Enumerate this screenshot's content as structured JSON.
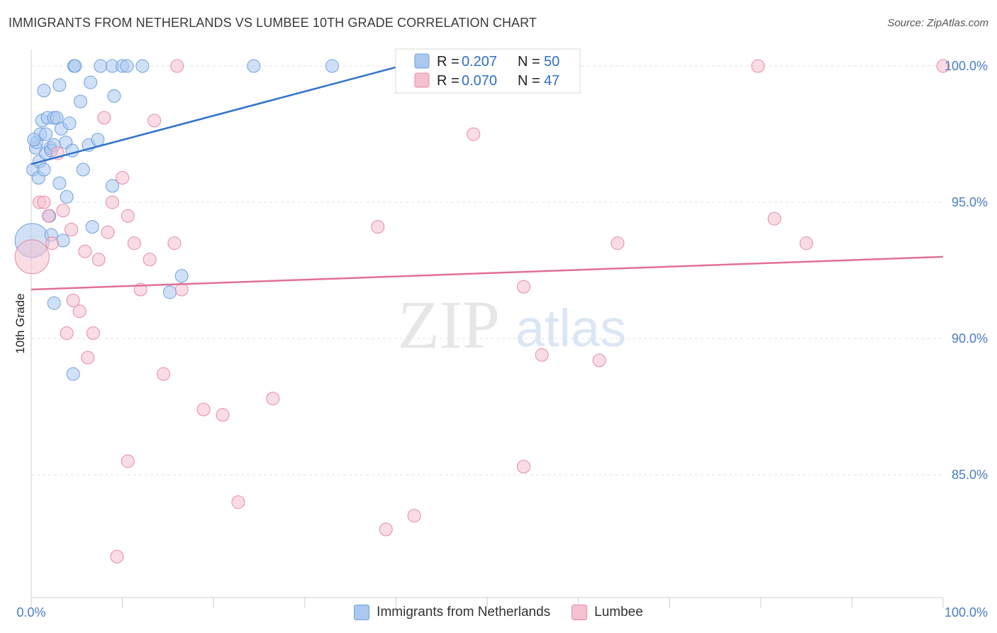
{
  "header": {
    "title": "IMMIGRANTS FROM NETHERLANDS VS LUMBEE 10TH GRADE CORRELATION CHART",
    "source": "Source: ZipAtlas.com"
  },
  "watermark": {
    "zip": "ZIP",
    "atlas": "atlas"
  },
  "colors": {
    "blue_fill": "#aac8f0",
    "blue_stroke": "#6f9fdc",
    "blue_line": "#2f72c9",
    "pink_fill": "#f5c0d0",
    "pink_stroke": "#e68aa6",
    "pink_line": "#e07098",
    "tick": "#4a7cc7",
    "grid": "#e3e3e3"
  },
  "legend": {
    "rows": [
      {
        "r_label": "R =",
        "r_value": "0.207",
        "n_label": "N =",
        "n_value": "50"
      },
      {
        "r_label": "R =",
        "r_value": "0.070",
        "n_label": "N =",
        "n_value": "47"
      }
    ]
  },
  "chart_data": {
    "type": "scatter",
    "title": "IMMIGRANTS FROM NETHERLANDS VS LUMBEE 10TH GRADE CORRELATION CHART",
    "xlabel": "",
    "ylabel": "10th Grade",
    "xlim": [
      0,
      100
    ],
    "ylim": [
      80.5,
      100.6
    ],
    "x_tick_labels": [
      "0.0%",
      "100.0%"
    ],
    "y_ticks": [
      85,
      90,
      95,
      100
    ],
    "y_tick_labels": [
      "85.0%",
      "90.0%",
      "95.0%",
      "100.0%"
    ],
    "legend_position": "top-center",
    "series": [
      {
        "name": "Immigrants from Netherlands",
        "color": "blue",
        "R": 0.207,
        "N": 50,
        "trend": {
          "x": [
            0,
            40.5
          ],
          "y": [
            96.4,
            100.0
          ]
        },
        "points": [
          {
            "x": 0.1,
            "y": 93.6,
            "big": true
          },
          {
            "x": 0.2,
            "y": 96.2
          },
          {
            "x": 0.5,
            "y": 97.0
          },
          {
            "x": 0.6,
            "y": 97.2
          },
          {
            "x": 0.8,
            "y": 95.9
          },
          {
            "x": 0.9,
            "y": 96.5
          },
          {
            "x": 1.0,
            "y": 97.5
          },
          {
            "x": 1.2,
            "y": 98.0
          },
          {
            "x": 1.4,
            "y": 99.1
          },
          {
            "x": 1.4,
            "y": 96.2
          },
          {
            "x": 1.6,
            "y": 96.8
          },
          {
            "x": 1.6,
            "y": 97.5
          },
          {
            "x": 1.8,
            "y": 98.1
          },
          {
            "x": 2.0,
            "y": 94.5
          },
          {
            "x": 2.1,
            "y": 97.0
          },
          {
            "x": 2.2,
            "y": 96.9
          },
          {
            "x": 2.2,
            "y": 93.8
          },
          {
            "x": 2.5,
            "y": 91.3
          },
          {
            "x": 2.5,
            "y": 98.1
          },
          {
            "x": 2.5,
            "y": 97.1
          },
          {
            "x": 2.8,
            "y": 98.1
          },
          {
            "x": 3.1,
            "y": 99.3
          },
          {
            "x": 3.1,
            "y": 95.7
          },
          {
            "x": 3.3,
            "y": 97.7
          },
          {
            "x": 3.5,
            "y": 93.6
          },
          {
            "x": 3.8,
            "y": 97.2
          },
          {
            "x": 3.9,
            "y": 95.2
          },
          {
            "x": 4.2,
            "y": 97.9
          },
          {
            "x": 4.5,
            "y": 96.9
          },
          {
            "x": 4.6,
            "y": 88.7
          },
          {
            "x": 4.7,
            "y": 100.0
          },
          {
            "x": 4.8,
            "y": 100.0
          },
          {
            "x": 5.4,
            "y": 98.7
          },
          {
            "x": 5.7,
            "y": 96.2
          },
          {
            "x": 6.3,
            "y": 97.1
          },
          {
            "x": 6.5,
            "y": 99.4
          },
          {
            "x": 6.7,
            "y": 94.1
          },
          {
            "x": 7.3,
            "y": 97.3
          },
          {
            "x": 7.6,
            "y": 100.0
          },
          {
            "x": 8.9,
            "y": 100.0
          },
          {
            "x": 8.9,
            "y": 95.6
          },
          {
            "x": 9.1,
            "y": 98.9
          },
          {
            "x": 10.0,
            "y": 100.0
          },
          {
            "x": 10.5,
            "y": 100.0
          },
          {
            "x": 12.2,
            "y": 100.0
          },
          {
            "x": 15.2,
            "y": 91.7
          },
          {
            "x": 16.5,
            "y": 92.3
          },
          {
            "x": 24.4,
            "y": 100.0
          },
          {
            "x": 33.0,
            "y": 100.0
          },
          {
            "x": 0.3,
            "y": 97.3
          }
        ]
      },
      {
        "name": "Lumbee",
        "color": "pink",
        "R": 0.07,
        "N": 47,
        "trend": {
          "x": [
            0,
            100
          ],
          "y": [
            91.8,
            93.0
          ]
        },
        "points": [
          {
            "x": 0.1,
            "y": 93.0,
            "big": true
          },
          {
            "x": 0.9,
            "y": 95.0
          },
          {
            "x": 1.4,
            "y": 95.0
          },
          {
            "x": 1.9,
            "y": 94.5
          },
          {
            "x": 2.3,
            "y": 93.5
          },
          {
            "x": 2.9,
            "y": 96.8
          },
          {
            "x": 3.5,
            "y": 94.7
          },
          {
            "x": 3.9,
            "y": 90.2
          },
          {
            "x": 4.4,
            "y": 94.0
          },
          {
            "x": 4.6,
            "y": 91.4
          },
          {
            "x": 5.3,
            "y": 91.0
          },
          {
            "x": 5.9,
            "y": 93.2
          },
          {
            "x": 6.2,
            "y": 89.3
          },
          {
            "x": 6.8,
            "y": 90.2
          },
          {
            "x": 7.4,
            "y": 92.9
          },
          {
            "x": 8.0,
            "y": 98.1
          },
          {
            "x": 8.4,
            "y": 93.9
          },
          {
            "x": 8.9,
            "y": 95.0
          },
          {
            "x": 9.4,
            "y": 82.0
          },
          {
            "x": 10.0,
            "y": 95.9
          },
          {
            "x": 10.6,
            "y": 94.5
          },
          {
            "x": 10.6,
            "y": 85.5
          },
          {
            "x": 11.3,
            "y": 93.5
          },
          {
            "x": 12.0,
            "y": 91.8
          },
          {
            "x": 13.0,
            "y": 92.9
          },
          {
            "x": 13.5,
            "y": 98.0
          },
          {
            "x": 14.5,
            "y": 88.7
          },
          {
            "x": 15.7,
            "y": 93.5
          },
          {
            "x": 16.5,
            "y": 91.8
          },
          {
            "x": 16.0,
            "y": 100.0
          },
          {
            "x": 18.9,
            "y": 87.4
          },
          {
            "x": 21.0,
            "y": 87.2
          },
          {
            "x": 22.7,
            "y": 84.0
          },
          {
            "x": 26.5,
            "y": 87.8
          },
          {
            "x": 38.0,
            "y": 94.1
          },
          {
            "x": 38.9,
            "y": 83.0
          },
          {
            "x": 42.0,
            "y": 83.5
          },
          {
            "x": 48.5,
            "y": 97.5
          },
          {
            "x": 54.0,
            "y": 91.9
          },
          {
            "x": 54.0,
            "y": 85.3
          },
          {
            "x": 56.0,
            "y": 89.4
          },
          {
            "x": 62.3,
            "y": 89.2
          },
          {
            "x": 64.3,
            "y": 93.5
          },
          {
            "x": 79.7,
            "y": 100.0
          },
          {
            "x": 81.5,
            "y": 94.4
          },
          {
            "x": 85.0,
            "y": 93.5
          },
          {
            "x": 100.0,
            "y": 100.0
          }
        ]
      }
    ]
  }
}
